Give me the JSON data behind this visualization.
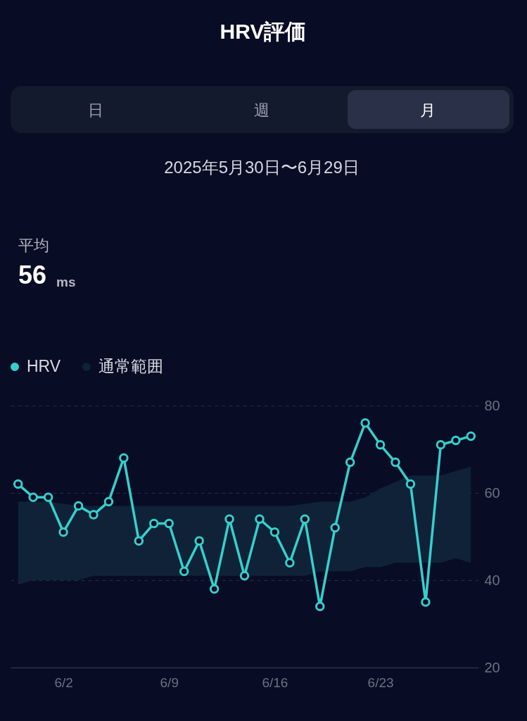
{
  "chart_data": {
    "type": "line",
    "title": "HRV評価",
    "subtitle": "2025年5月30日〜6月29日",
    "annotations": [
      "日",
      "週",
      "月",
      "平均",
      "56",
      "ms"
    ],
    "x": [
      "2025-05-30",
      "2025-05-31",
      "2025-06-01",
      "2025-06-02",
      "2025-06-03",
      "2025-06-04",
      "2025-06-05",
      "2025-06-06",
      "2025-06-07",
      "2025-06-08",
      "2025-06-09",
      "2025-06-10",
      "2025-06-11",
      "2025-06-12",
      "2025-06-13",
      "2025-06-14",
      "2025-06-15",
      "2025-06-16",
      "2025-06-17",
      "2025-06-18",
      "2025-06-19",
      "2025-06-20",
      "2025-06-21",
      "2025-06-22",
      "2025-06-23",
      "2025-06-24",
      "2025-06-25",
      "2025-06-26",
      "2025-06-27",
      "2025-06-28",
      "2025-06-29"
    ],
    "series": [
      {
        "name": "HRV",
        "color": "#35d0cc",
        "marker": "circle",
        "values": [
          62,
          59,
          59,
          51,
          57,
          55,
          58,
          68,
          49,
          53,
          53,
          42,
          49,
          38,
          54,
          41,
          54,
          51,
          44,
          54,
          34,
          52,
          67,
          76,
          71,
          67,
          62,
          35,
          71,
          72,
          73
        ]
      },
      {
        "name": "通常範囲",
        "type": "area",
        "color": "#0f2238",
        "values": [
          null,
          null,
          null,
          null,
          null,
          null,
          null,
          null,
          null,
          null,
          null,
          null,
          null,
          null,
          null,
          null,
          null,
          null,
          null,
          null,
          null,
          null,
          null,
          null,
          null,
          null,
          null,
          null,
          null,
          null,
          null
        ],
        "lower": [
          39,
          40,
          40,
          40,
          40,
          41,
          41,
          41,
          41,
          41,
          41,
          41,
          41,
          41,
          41,
          41,
          41,
          41,
          41,
          41,
          42,
          42,
          42,
          43,
          43,
          44,
          44,
          44,
          44,
          45,
          44
        ],
        "upper": [
          58,
          58,
          58,
          57.5,
          57,
          57,
          57,
          57,
          57,
          57,
          57,
          57,
          57,
          57,
          57,
          57,
          57,
          57,
          57,
          57.5,
          58,
          58,
          58,
          59,
          61,
          62.5,
          64,
          64,
          64,
          65,
          66
        ]
      }
    ],
    "xlim": [
      "2025-05-29T12:00",
      "2025-06-29T12:00"
    ],
    "xticks": [
      {
        "value": "2025-06-02",
        "label": "6/2"
      },
      {
        "value": "2025-06-09",
        "label": "6/9"
      },
      {
        "value": "2025-06-16",
        "label": "6/16"
      },
      {
        "value": "2025-06-23",
        "label": "6/23"
      }
    ],
    "ylim": [
      20,
      80
    ],
    "yticks": [
      20,
      40,
      60,
      80
    ],
    "grid": "y",
    "legend": "top left",
    "line_style": "solid"
  }
}
